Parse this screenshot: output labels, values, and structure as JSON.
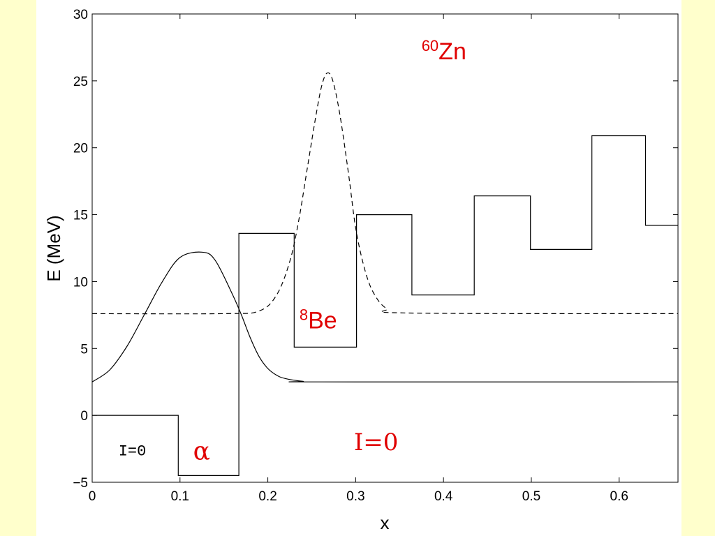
{
  "chart_data": {
    "type": "line",
    "xlabel": "x",
    "ylabel": "E (MeV)",
    "xlim": [
      0,
      0.667
    ],
    "ylim": [
      -5,
      30
    ],
    "grid": false,
    "x_ticks": [
      "0",
      "0.1",
      "0.2",
      "0.3",
      "0.4",
      "0.5",
      "0.6"
    ],
    "x_tick_values": [
      0,
      0.1,
      0.2,
      0.3,
      0.4,
      0.5,
      0.6
    ],
    "y_ticks": [
      "−5",
      "0",
      "5",
      "10",
      "15",
      "20",
      "25",
      "30"
    ],
    "y_tick_values": [
      -5,
      0,
      5,
      10,
      15,
      20,
      25,
      30
    ],
    "series": [
      {
        "style": "solid-step",
        "x": [
          0,
          0.098,
          0.098,
          0.167,
          0.167,
          0.23,
          0.23,
          0.301,
          0.301,
          0.364,
          0.364,
          0.435,
          0.435,
          0.499,
          0.499,
          0.569,
          0.569,
          0.63,
          0.63,
          0.667
        ],
        "y": [
          0,
          0,
          -4.5,
          -4.5,
          13.6,
          13.6,
          5.1,
          5.1,
          15.0,
          15.0,
          9.0,
          9.0,
          16.4,
          16.4,
          12.4,
          12.4,
          20.9,
          20.9,
          14.2,
          14.2
        ]
      },
      {
        "style": "solid",
        "baseline": 2.5,
        "peak_x": 0.125,
        "peak_y": 12.2,
        "x": [
          0,
          0.02,
          0.04,
          0.06,
          0.08,
          0.1,
          0.125,
          0.14,
          0.16,
          0.17,
          0.18,
          0.19,
          0.2,
          0.21,
          0.22,
          0.24,
          0.26,
          0.667
        ],
        "y": [
          2.5,
          3.4,
          5.2,
          7.6,
          10.0,
          11.8,
          12.2,
          11.6,
          9.0,
          7.5,
          5.8,
          4.4,
          3.5,
          3.0,
          2.75,
          2.55,
          2.5,
          2.5
        ]
      },
      {
        "style": "dashed",
        "baseline": 7.6,
        "peak_x": 0.268,
        "peak_y": 25.6,
        "x": [
          0,
          0.15,
          0.19,
          0.21,
          0.225,
          0.235,
          0.245,
          0.255,
          0.262,
          0.268,
          0.274,
          0.282,
          0.292,
          0.3,
          0.31,
          0.32,
          0.335,
          0.36,
          0.667
        ],
        "y": [
          7.6,
          7.6,
          7.8,
          9.0,
          11.5,
          14.5,
          18.5,
          22.5,
          24.8,
          25.6,
          25.0,
          22.5,
          18.0,
          14.0,
          11.0,
          9.2,
          8.0,
          7.65,
          7.6
        ]
      }
    ],
    "annotations": [
      {
        "id": "zn",
        "x": 0.375,
        "y": 26.6,
        "mass": "60",
        "symbol": "Zn",
        "color": "#e00000"
      },
      {
        "id": "be",
        "x": 0.236,
        "y": 6.5,
        "mass": "8",
        "symbol": "Be",
        "color": "#e00000"
      },
      {
        "id": "alpha",
        "x": 0.115,
        "y": -3.3,
        "text": "α",
        "color": "#e00000"
      },
      {
        "id": "i0-red",
        "x": 0.298,
        "y": -2.6,
        "text": "I=0",
        "color": "#e00000"
      },
      {
        "id": "i0-black",
        "x": 0.03,
        "y": -3.0,
        "text": "I=0",
        "color": "#000000"
      }
    ]
  }
}
